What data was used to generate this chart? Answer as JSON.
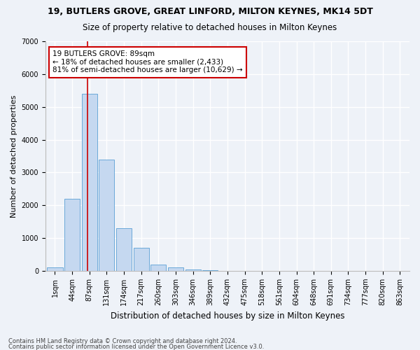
{
  "title": "19, BUTLERS GROVE, GREAT LINFORD, MILTON KEYNES, MK14 5DT",
  "subtitle": "Size of property relative to detached houses in Milton Keynes",
  "xlabel": "Distribution of detached houses by size in Milton Keynes",
  "ylabel": "Number of detached properties",
  "footnote1": "Contains HM Land Registry data © Crown copyright and database right 2024.",
  "footnote2": "Contains public sector information licensed under the Open Government Licence v3.0.",
  "categories": [
    "1sqm",
    "44sqm",
    "87sqm",
    "131sqm",
    "174sqm",
    "217sqm",
    "260sqm",
    "303sqm",
    "346sqm",
    "389sqm",
    "432sqm",
    "475sqm",
    "518sqm",
    "561sqm",
    "604sqm",
    "648sqm",
    "691sqm",
    "734sqm",
    "777sqm",
    "820sqm",
    "863sqm"
  ],
  "values": [
    100,
    2200,
    5400,
    3400,
    1300,
    700,
    200,
    100,
    50,
    15,
    0,
    0,
    0,
    0,
    0,
    0,
    0,
    0,
    0,
    0,
    0
  ],
  "bar_color": "#c5d8f0",
  "bar_edge_color": "#5a9fd4",
  "ylim": [
    0,
    7000
  ],
  "yticks": [
    0,
    1000,
    2000,
    3000,
    4000,
    5000,
    6000,
    7000
  ],
  "vline_color": "#cc0000",
  "vline_x": 1.87,
  "annotation_text": "19 BUTLERS GROVE: 89sqm\n← 18% of detached houses are smaller (2,433)\n81% of semi-detached houses are larger (10,629) →",
  "annotation_box_color": "white",
  "annotation_box_edge": "#cc0000",
  "bg_color": "#eef2f8",
  "grid_color": "white",
  "title_fontsize": 9,
  "subtitle_fontsize": 8.5,
  "axis_label_fontsize": 8,
  "tick_fontsize": 7,
  "annotation_fontsize": 7.5,
  "footnote_fontsize": 6
}
